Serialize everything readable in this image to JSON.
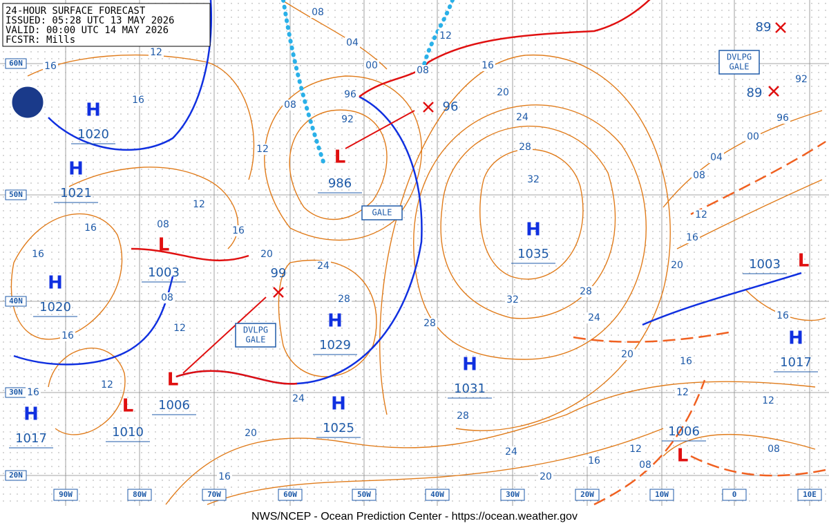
{
  "header": {
    "lines": [
      "24-HOUR SURFACE FORECAST",
      "ISSUED: 05:28 UTC 13 MAY 2026",
      "VALID:  00:00 UTC 14 MAY 2026",
      "FCSTR:  Mills"
    ]
  },
  "latitudes": [
    "60N",
    "50N",
    "40N",
    "30N",
    "20N"
  ],
  "longitudes": [
    "90W",
    "80W",
    "70W",
    "60W",
    "50W",
    "40W",
    "30W",
    "20W",
    "10W",
    "0",
    "10E"
  ],
  "highs": [
    {
      "symbol": "H",
      "pressure": "1020"
    },
    {
      "symbol": "H",
      "pressure": "1021"
    },
    {
      "symbol": "H",
      "pressure": "1020"
    },
    {
      "symbol": "H",
      "pressure": "1017"
    },
    {
      "symbol": "H",
      "pressure": "1029"
    },
    {
      "symbol": "H",
      "pressure": "1025"
    },
    {
      "symbol": "H",
      "pressure": "1031"
    },
    {
      "symbol": "H",
      "pressure": "1035"
    },
    {
      "symbol": "H",
      "pressure": "1017"
    }
  ],
  "lows": [
    {
      "symbol": "L",
      "pressure": "986"
    },
    {
      "symbol": "L",
      "pressure": "1003"
    },
    {
      "symbol": "L",
      "pressure": "1006"
    },
    {
      "symbol": "L",
      "pressure": "1010"
    },
    {
      "symbol": "L",
      "pressure": "1006"
    },
    {
      "symbol": "L",
      "pressure": "1003"
    }
  ],
  "forecast_positions": [
    "96",
    "99",
    "89",
    "89"
  ],
  "isobar_labels": [
    "08",
    "04",
    "00",
    "08",
    "12",
    "16",
    "20",
    "24",
    "28",
    "32",
    "32",
    "28",
    "24",
    "28",
    "20",
    "16",
    "12",
    "12",
    "08",
    "08",
    "12",
    "16",
    "20",
    "24",
    "28",
    "24",
    "20",
    "16",
    "12",
    "16",
    "16",
    "12",
    "08",
    "16",
    "16",
    "08",
    "12",
    "16",
    "20",
    "24",
    "28",
    "12",
    "16",
    "16",
    "12",
    "08",
    "96",
    "92",
    "16",
    "20",
    "12",
    "08",
    "04",
    "00",
    "96",
    "92",
    "16"
  ],
  "annotations": [
    {
      "lines": [
        "GALE"
      ]
    },
    {
      "lines": [
        "DVLPG",
        "GALE"
      ]
    },
    {
      "lines": [
        "DVLPG",
        "GALE"
      ]
    }
  ],
  "footer": "NWS/NCEP - Ocean Prediction Center - https://ocean.weather.gov"
}
